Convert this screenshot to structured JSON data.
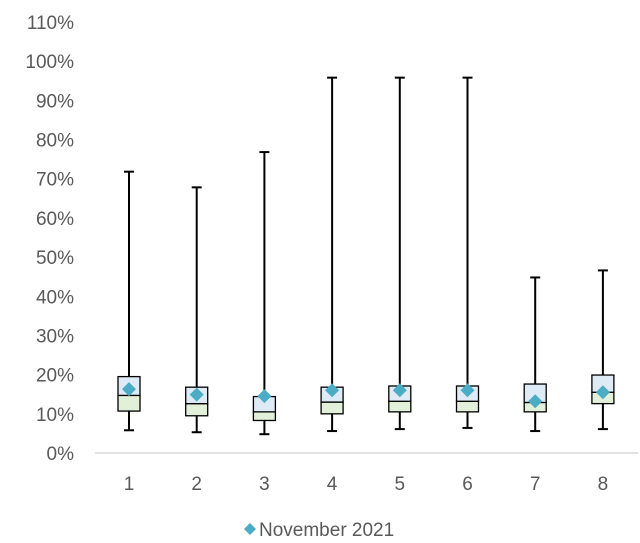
{
  "chart_data": {
    "type": "box",
    "title": "",
    "xlabel": "",
    "ylabel": "",
    "categories": [
      "1",
      "2",
      "3",
      "4",
      "5",
      "6",
      "7",
      "8"
    ],
    "y_ticks": [
      "0%",
      "10%",
      "20%",
      "30%",
      "40%",
      "50%",
      "60%",
      "70%",
      "80%",
      "90%",
      "100%",
      "110%"
    ],
    "ylim": [
      0,
      110
    ],
    "y_unit": "%",
    "grid": false,
    "legend_position": "bottom",
    "series": [
      {
        "name": "November 2021",
        "points": [
          16.3,
          14.9,
          14.5,
          16.0,
          16.0,
          16.0,
          13.2,
          15.5
        ]
      }
    ],
    "boxes": [
      {
        "category": "1",
        "min": 5.8,
        "q1": 10.7,
        "median": 14.7,
        "q3": 19.5,
        "max": 71.8
      },
      {
        "category": "2",
        "min": 5.3,
        "q1": 9.5,
        "median": 12.6,
        "q3": 16.8,
        "max": 67.8
      },
      {
        "category": "3",
        "min": 4.8,
        "q1": 8.3,
        "median": 10.5,
        "q3": 14.4,
        "max": 76.8
      },
      {
        "category": "4",
        "min": 5.6,
        "q1": 10.0,
        "median": 13.0,
        "q3": 16.8,
        "max": 95.8
      },
      {
        "category": "5",
        "min": 6.1,
        "q1": 10.5,
        "median": 13.2,
        "q3": 17.1,
        "max": 95.8
      },
      {
        "category": "6",
        "min": 6.4,
        "q1": 10.5,
        "median": 13.2,
        "q3": 17.1,
        "max": 95.8
      },
      {
        "category": "7",
        "min": 5.6,
        "q1": 10.5,
        "median": 12.9,
        "q3": 17.6,
        "max": 44.8
      },
      {
        "category": "8",
        "min": 6.1,
        "q1": 12.6,
        "median": 15.5,
        "q3": 19.9,
        "max": 46.6
      }
    ],
    "colors": {
      "lower_box": "#e2efd9",
      "upper_box": "#deebf7",
      "box_outline": "#000000",
      "whisker": "#000000",
      "marker": "#4bacc6",
      "axis": "#d9d9d9",
      "text": "#595959"
    }
  }
}
